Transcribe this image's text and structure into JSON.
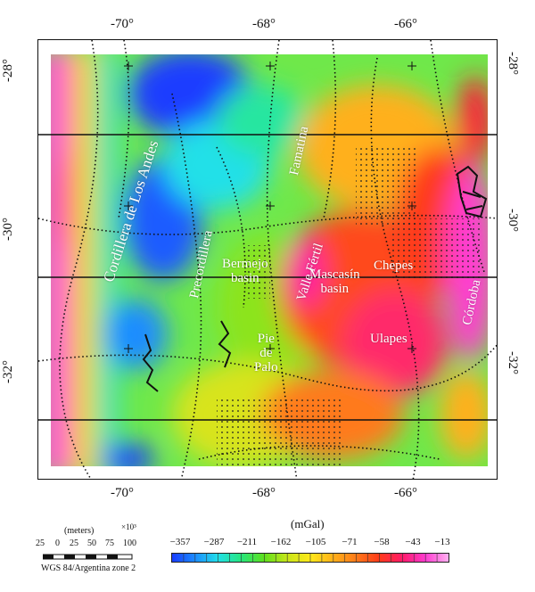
{
  "axes": {
    "x_ticks": [
      "-70°",
      "-68°",
      "-66°"
    ],
    "y_ticks": [
      "-28°",
      "-30°",
      "-32°"
    ]
  },
  "places": {
    "andes": "Cordillera de Los Andes",
    "precordillera": "Precordillera",
    "famatina": "Famatina",
    "bermejo": [
      "Bermejo",
      "basin"
    ],
    "valle_fertil": "Valle Fértil",
    "mascasin": [
      "Mascasín",
      "basin"
    ],
    "chepes": "Chepes",
    "cordoba": "Córdoba",
    "ulapes": "Ulapes",
    "pie_de_palo": [
      "Pie",
      "de",
      "Palo"
    ]
  },
  "scale_bar": {
    "units": "(meters)",
    "multiplier": "×10³",
    "ticks": [
      "25",
      "0",
      "25",
      "50",
      "75",
      "100"
    ],
    "projection": "WGS 84/Argentina zone 2"
  },
  "colorbar": {
    "unit": "(mGal)",
    "labels": [
      "−357",
      "−287",
      "−211",
      "−162",
      "−105",
      "−71",
      "−58",
      "−43",
      "−13"
    ],
    "colors": [
      "#1a3cff",
      "#1b8cff",
      "#22e0e8",
      "#26e67d",
      "#5fe01c",
      "#c8e61a",
      "#ffe91a",
      "#ffb01a",
      "#ff7a1a",
      "#ff3a1a",
      "#ff1a6a",
      "#ff3cd0",
      "#ffb0f0"
    ]
  }
}
